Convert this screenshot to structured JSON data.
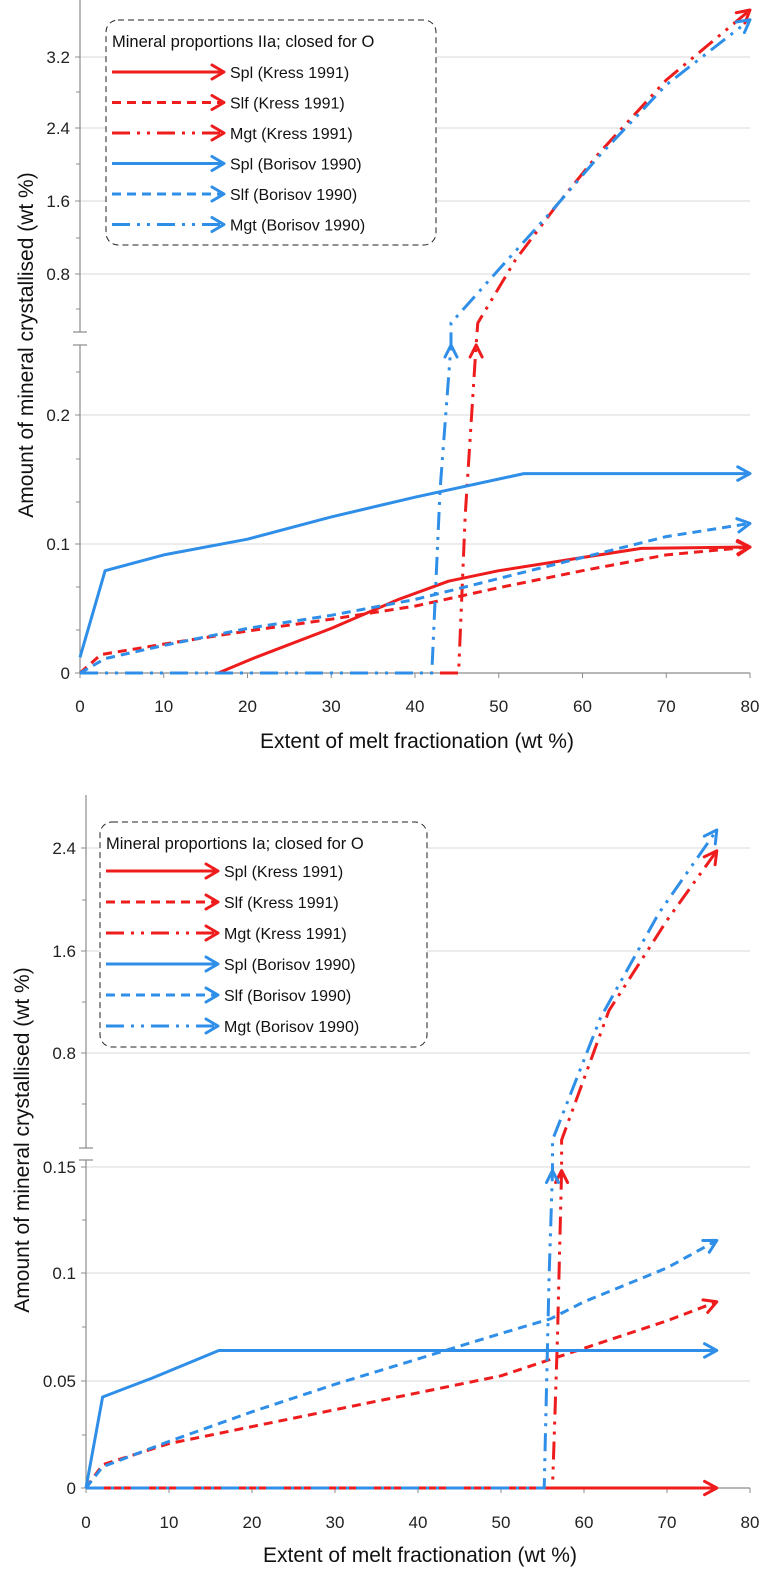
{
  "colors": {
    "kress": "#ee1c1c",
    "borisov": "#2f8fe8"
  },
  "chart_data": [
    {
      "type": "line",
      "legend_title": "Mineral proportions IIa; closed for O",
      "legend_placement": "top-left",
      "xlabel": "Extent of melt fractionation (wt %)",
      "ylabel": "Amount of mineral crystallised (wt %)",
      "xlim": [
        0,
        80
      ],
      "x_ticks": [
        "0",
        "10",
        "20",
        "30",
        "40",
        "50",
        "60",
        "70",
        "80"
      ],
      "y_axis_break": true,
      "ylim_lower": [
        0,
        0.25
      ],
      "ylim_upper": [
        0.45,
        3.7
      ],
      "y_ticks_lower": [
        "0",
        "0.1",
        "0.2"
      ],
      "y_ticks_upper": [
        "0.8",
        "1.6",
        "2.4",
        "3.2"
      ],
      "grid": "horizontal",
      "series": [
        {
          "name": "Spl (Kress 1991)",
          "color": "#ee1c1c",
          "dash": "solid",
          "points": [
            [
              16.5,
              0
            ],
            [
              21,
              0.012
            ],
            [
              30,
              0.034
            ],
            [
              38,
              0.056
            ],
            [
              44,
              0.07
            ],
            [
              50,
              0.078
            ],
            [
              60,
              0.088
            ],
            [
              67,
              0.095
            ],
            [
              80,
              0.096
            ]
          ]
        },
        {
          "name": "Slf (Kress 1991)",
          "color": "#ee1c1c",
          "dash": "dashed",
          "points": [
            [
              0,
              0
            ],
            [
              2.5,
              0.014
            ],
            [
              10,
              0.022
            ],
            [
              20,
              0.032
            ],
            [
              30,
              0.041
            ],
            [
              40,
              0.051
            ],
            [
              50,
              0.065
            ],
            [
              60,
              0.078
            ],
            [
              70,
              0.09
            ],
            [
              80,
              0.096
            ]
          ]
        },
        {
          "name": "Mgt (Kress 1991)",
          "color": "#ee1c1c",
          "dash": "dashdotdot",
          "points": [
            [
              0,
              0
            ],
            [
              45.2,
              0
            ],
            [
              46,
              0.12
            ],
            [
              47.3,
              0.25
            ],
            [
              47.5,
              0.5
            ],
            [
              52,
              1.15
            ],
            [
              57,
              1.72
            ],
            [
              62,
              2.25
            ],
            [
              70,
              3.0
            ],
            [
              80,
              3.72
            ]
          ]
        },
        {
          "name": "Spl (Borisov 1990)",
          "color": "#2f8fe8",
          "dash": "solid",
          "points": [
            [
              0,
              0.012
            ],
            [
              3,
              0.078
            ],
            [
              10,
              0.09
            ],
            [
              20,
              0.102
            ],
            [
              30,
              0.119
            ],
            [
              40,
              0.134
            ],
            [
              53,
              0.152
            ],
            [
              80,
              0.152
            ]
          ]
        },
        {
          "name": "Slf (Borisov 1990)",
          "color": "#2f8fe8",
          "dash": "dashed",
          "points": [
            [
              0,
              0
            ],
            [
              3,
              0.011
            ],
            [
              10,
              0.021
            ],
            [
              20,
              0.034
            ],
            [
              30,
              0.044
            ],
            [
              40,
              0.056
            ],
            [
              50,
              0.072
            ],
            [
              60,
              0.088
            ],
            [
              70,
              0.104
            ],
            [
              80,
              0.114
            ]
          ]
        },
        {
          "name": "Mgt (Borisov 1990)",
          "color": "#2f8fe8",
          "dash": "dashdotdot",
          "points": [
            [
              0,
              0
            ],
            [
              42,
              0
            ],
            [
              43,
              0.14
            ],
            [
              44.3,
              0.25
            ],
            [
              44.3,
              0.5
            ],
            [
              50,
              1.05
            ],
            [
              56,
              1.62
            ],
            [
              62,
              2.22
            ],
            [
              70,
              2.95
            ],
            [
              80,
              3.62
            ]
          ]
        }
      ]
    },
    {
      "type": "line",
      "legend_title": "Mineral proportions Ia; closed for O",
      "legend_placement": "top-left",
      "xlabel": "Extent of melt fractionation (wt %)",
      "ylabel": "Amount of mineral crystallised (wt %)",
      "xlim": [
        0,
        80
      ],
      "x_ticks": [
        "0",
        "10",
        "20",
        "30",
        "40",
        "50",
        "60",
        "70",
        "80"
      ],
      "y_axis_break": true,
      "ylim_lower": [
        0,
        0.155
      ],
      "ylim_upper": [
        0.15,
        2.6
      ],
      "y_ticks_lower": [
        "0",
        "0.05",
        "0.1",
        "0.15"
      ],
      "y_ticks_upper": [
        "0.8",
        "1.6",
        "2.4"
      ],
      "grid": "horizontal",
      "series": [
        {
          "name": "Spl (Kress 1991)",
          "color": "#ee1c1c",
          "dash": "solid",
          "points": [
            [
              0,
              0
            ],
            [
              76,
              0
            ]
          ]
        },
        {
          "name": "Slf (Kress 1991)",
          "color": "#ee1c1c",
          "dash": "dashed",
          "points": [
            [
              0,
              0
            ],
            [
              2,
              0.011
            ],
            [
              10,
              0.021
            ],
            [
              20,
              0.029
            ],
            [
              30,
              0.037
            ],
            [
              40,
              0.045
            ],
            [
              50,
              0.053
            ],
            [
              60,
              0.066
            ],
            [
              70,
              0.079
            ],
            [
              76,
              0.088
            ]
          ]
        },
        {
          "name": "Mgt (Kress 1991)",
          "color": "#ee1c1c",
          "dash": "dashdotdot",
          "points": [
            [
              0,
              0
            ],
            [
              56.2,
              0
            ],
            [
              56.8,
              0.07
            ],
            [
              57.3,
              0.15
            ],
            [
              57.3,
              0.32
            ],
            [
              63,
              1.25
            ],
            [
              70,
              1.9
            ],
            [
              76,
              2.4
            ]
          ]
        },
        {
          "name": "Spl (Borisov 1990)",
          "color": "#2f8fe8",
          "dash": "solid",
          "points": [
            [
              0,
              0
            ],
            [
              2,
              0.043
            ],
            [
              8,
              0.052
            ],
            [
              16,
              0.065
            ],
            [
              76,
              0.065
            ]
          ]
        },
        {
          "name": "Slf (Borisov 1990)",
          "color": "#2f8fe8",
          "dash": "dashed",
          "points": [
            [
              0,
              0
            ],
            [
              2,
              0.01
            ],
            [
              10,
              0.022
            ],
            [
              20,
              0.036
            ],
            [
              30,
              0.049
            ],
            [
              40,
              0.061
            ],
            [
              50,
              0.073
            ],
            [
              56,
              0.08
            ],
            [
              60,
              0.088
            ],
            [
              70,
              0.104
            ],
            [
              76,
              0.117
            ]
          ]
        },
        {
          "name": "Mgt (Borisov 1990)",
          "color": "#2f8fe8",
          "dash": "dashdotdot",
          "points": [
            [
              0,
              0
            ],
            [
              55.2,
              0
            ],
            [
              55.8,
              0.1
            ],
            [
              56.2,
              0.15
            ],
            [
              56.2,
              0.32
            ],
            [
              62,
              1.2
            ],
            [
              69,
              1.95
            ],
            [
              76,
              2.55
            ]
          ]
        }
      ]
    }
  ]
}
